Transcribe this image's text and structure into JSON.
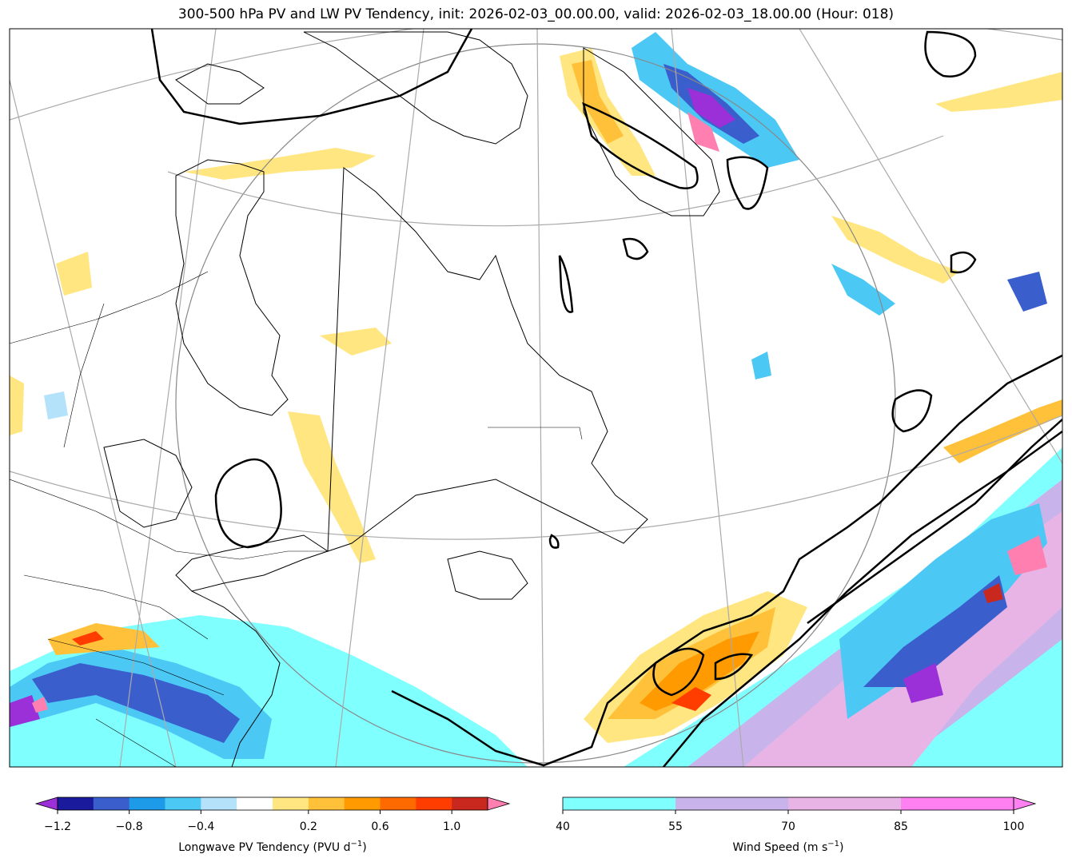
{
  "title": "300-500 hPa PV and LW PV Tendency, init: 2026-02-03_00.00.00, valid: 2026-02-03_18.00.00 (Hour: 018)",
  "colorbars": {
    "pv_tendency": {
      "label": "Longwave PV Tendency (PVU d",
      "label_sup": "−1",
      "label_end": ")",
      "ticks": [
        "−1.2",
        "−0.8",
        "−0.4",
        "0.2",
        "0.6",
        "1.0"
      ],
      "colors": [
        "#9b30d9",
        "#1a1a9c",
        "#3a5fcd",
        "#1e9be8",
        "#4cc8f5",
        "#b5e2fb",
        "#ffffff",
        "#ffe680",
        "#ffc03a",
        "#ff9a00",
        "#ff6a00",
        "#ff3d00",
        "#c8281e",
        "#ff80b0"
      ]
    },
    "wind_speed": {
      "label": "Wind Speed (m s",
      "label_sup": "−1",
      "label_end": ")",
      "ticks": [
        "40",
        "55",
        "70",
        "85",
        "100"
      ],
      "colors": [
        "#80ffff",
        "#c8b4ea",
        "#e8b4e6",
        "#ff80f0"
      ]
    }
  },
  "colors": {
    "land_outline": "#000000",
    "pv_contour": "#000000",
    "graticule": "#aaaaaa",
    "jet_cyan": "#80ffff",
    "jet_purple": "#c8b4ea",
    "jet_pink": "#e8b4e6",
    "tend_yellow": "#ffe680",
    "tend_orange": "#ffa500",
    "tend_red": "#ff4500",
    "tend_blue": "#4cc8f5",
    "tend_navy": "#1a1a9c"
  }
}
